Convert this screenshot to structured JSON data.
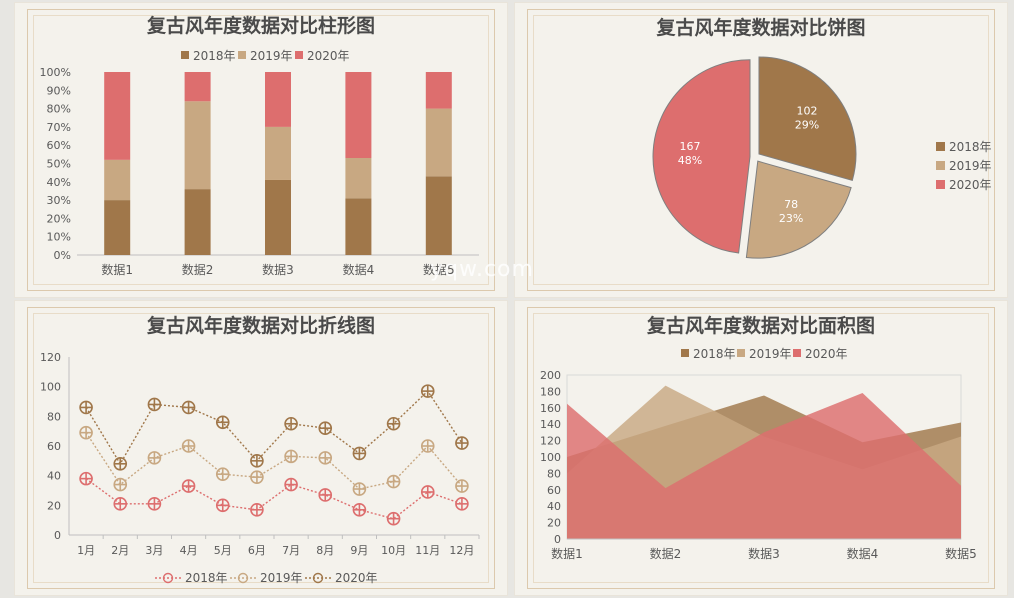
{
  "colors": {
    "y2018": "#a0774a",
    "y2019": "#c8a882",
    "y2020": "#dd6e6e"
  },
  "watermark": "yqw.com",
  "chart_data": [
    {
      "type": "bar",
      "stacked": "percent",
      "title": "复古风年度数据对比柱形图",
      "categories": [
        "数据1",
        "数据2",
        "数据3",
        "数据4",
        "数据5"
      ],
      "series": [
        {
          "name": "2018年",
          "values": [
            30,
            36,
            41,
            31,
            43
          ]
        },
        {
          "name": "2019年",
          "values": [
            22,
            48,
            29,
            22,
            37
          ]
        },
        {
          "name": "2020年",
          "values": [
            48,
            16,
            30,
            47,
            20
          ]
        }
      ],
      "ylim": [
        0,
        100
      ],
      "yticks": [
        "0%",
        "10%",
        "20%",
        "30%",
        "40%",
        "50%",
        "60%",
        "70%",
        "80%",
        "90%",
        "100%"
      ],
      "legend": "top"
    },
    {
      "type": "pie",
      "title": "复古风年度数据对比饼图",
      "labels": [
        "2018年",
        "2019年",
        "2020年"
      ],
      "values": [
        102,
        78,
        167
      ],
      "percents": [
        "29%",
        "23%",
        "48%"
      ],
      "legend": "right"
    },
    {
      "type": "line",
      "title": "复古风年度数据对比折线图",
      "x": [
        "1月",
        "2月",
        "3月",
        "4月",
        "5月",
        "6月",
        "7月",
        "8月",
        "9月",
        "10月",
        "11月",
        "12月"
      ],
      "series": [
        {
          "name": "2018年",
          "values": [
            38,
            21,
            21,
            33,
            20,
            17,
            34,
            27,
            17,
            11,
            29,
            21
          ]
        },
        {
          "name": "2019年",
          "values": [
            69,
            34,
            52,
            60,
            41,
            39,
            53,
            52,
            31,
            36,
            60,
            33
          ]
        },
        {
          "name": "2020年",
          "values": [
            86,
            48,
            88,
            86,
            76,
            50,
            75,
            72,
            55,
            75,
            97,
            62
          ]
        }
      ],
      "ylim": [
        0,
        120
      ],
      "yticks": [
        "0",
        "20",
        "40",
        "60",
        "80",
        "100",
        "120"
      ],
      "legend": "bottom"
    },
    {
      "type": "area",
      "title": "复古风年度数据对比面积图",
      "categories": [
        "数据1",
        "数据2",
        "数据3",
        "数据4",
        "数据5"
      ],
      "series": [
        {
          "name": "2018年",
          "values": [
            100,
            138,
            175,
            118,
            142
          ]
        },
        {
          "name": "2019年",
          "values": [
            80,
            187,
            125,
            85,
            125
          ]
        },
        {
          "name": "2020年",
          "values": [
            165,
            62,
            130,
            178,
            65
          ]
        }
      ],
      "ylim": [
        0,
        200
      ],
      "yticks": [
        "0",
        "20",
        "40",
        "60",
        "80",
        "100",
        "120",
        "140",
        "160",
        "180",
        "200"
      ],
      "legend": "top"
    }
  ]
}
